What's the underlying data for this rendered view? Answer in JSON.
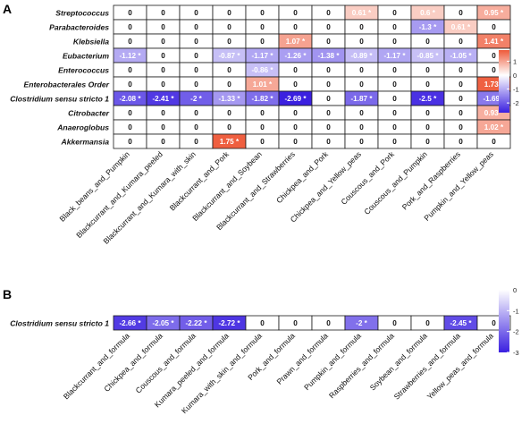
{
  "colors": {
    "negative": "#3a1fe0",
    "neutral": "#ffffff",
    "positive": "#ee5a3a",
    "border": "#1a1a1a",
    "text_on_light": "#111111",
    "text_on_dark": "#ffffff"
  },
  "chart_data": [
    {
      "type": "heatmap",
      "panel_label": "A",
      "title": "",
      "xlabel": "",
      "ylabel": "",
      "rows": [
        "Streptococcus",
        "Parabacteroides",
        "Klebsiella",
        "Eubacterium",
        "Enterococcus",
        "Enterobacterales Order",
        "Clostridium sensu stricto 1",
        "Citrobacter",
        "Anaeroglobus",
        "Akkermansia"
      ],
      "columns": [
        "Black_beans_and_Pumpkin",
        "Blackcurrant_and_Kumara_peeled",
        "Blackcurrant_and_Kumara_with_skin",
        "Blackcurrant_and_Pork",
        "Blackcurrant_and_Soybean",
        "Blackcurrant_and_Strawberries",
        "Chickpea_and_Pork",
        "Chickpea_and_Yellow_peas",
        "Couscous_and_Pork",
        "Couscous_and_Pumpkin",
        "Pork_and_Raspberries",
        "Pumpkin_and_Yellow_peas"
      ],
      "values": [
        [
          0,
          0,
          0,
          0,
          0,
          0,
          0,
          0.61,
          0,
          0.6,
          0,
          0.95
        ],
        [
          0,
          0,
          0,
          0,
          0,
          0,
          0,
          0,
          0,
          -1.3,
          0.61,
          0
        ],
        [
          0,
          0,
          0,
          0,
          0,
          1.07,
          0,
          0,
          0,
          0,
          0,
          1.41
        ],
        [
          -1.12,
          0,
          0,
          -0.87,
          -1.17,
          -1.26,
          -1.38,
          -0.89,
          -1.17,
          -0.85,
          -1.05,
          0
        ],
        [
          0,
          0,
          0,
          0,
          -0.86,
          0,
          0,
          0,
          0,
          0,
          0,
          0
        ],
        [
          0,
          0,
          0,
          0,
          1.01,
          0,
          0,
          0,
          0,
          0,
          0,
          1.73
        ],
        [
          -2.08,
          -2.41,
          -2,
          -1.33,
          -1.82,
          -2.69,
          0,
          -1.87,
          0,
          -2.5,
          0,
          -1.69
        ],
        [
          0,
          0,
          0,
          0,
          0,
          0,
          0,
          0,
          0,
          0,
          0,
          0.93
        ],
        [
          0,
          0,
          0,
          0,
          0,
          0,
          0,
          0,
          0,
          0,
          0,
          1.02
        ],
        [
          0,
          0,
          0,
          1.75,
          0,
          0,
          0,
          0,
          0,
          0,
          0,
          0
        ]
      ],
      "labels": [
        [
          "0",
          "0",
          "0",
          "0",
          "0",
          "0",
          "0",
          "0.61 *",
          "0",
          "0.6 *",
          "0",
          "0.95 *"
        ],
        [
          "0",
          "0",
          "0",
          "0",
          "0",
          "0",
          "0",
          "0",
          "0",
          "-1.3 *",
          "0.61 *",
          "0"
        ],
        [
          "0",
          "0",
          "0",
          "0",
          "0",
          "1.07 *",
          "0",
          "0",
          "0",
          "0",
          "0",
          "1.41 *"
        ],
        [
          "-1.12 *",
          "0",
          "0",
          "-0.87 *",
          "-1.17 *",
          "-1.26 *",
          "-1.38 *",
          "-0.89 *",
          "-1.17 *",
          "-0.85 *",
          "-1.05 *",
          "0"
        ],
        [
          "0",
          "0",
          "0",
          "0",
          "-0.86 *",
          "0",
          "0",
          "0",
          "0",
          "0",
          "0",
          "0"
        ],
        [
          "0",
          "0",
          "0",
          "0",
          "1.01 *",
          "0",
          "0",
          "0",
          "0",
          "0",
          "0",
          "1.73 *"
        ],
        [
          "-2.08 *",
          "-2.41 *",
          "-2 *",
          "-1.33 *",
          "-1.82 *",
          "-2.69 *",
          "0",
          "-1.87 *",
          "0",
          "-2.5 *",
          "0",
          "-1.69 *"
        ],
        [
          "0",
          "0",
          "0",
          "0",
          "0",
          "0",
          "0",
          "0",
          "0",
          "0",
          "0",
          "0.93 *"
        ],
        [
          "0",
          "0",
          "0",
          "0",
          "0",
          "0",
          "0",
          "0",
          "0",
          "0",
          "0",
          "1.02 *"
        ],
        [
          "0",
          "0",
          "0",
          "1.75 *",
          "0",
          "0",
          "0",
          "0",
          "0",
          "0",
          "0",
          "0"
        ]
      ],
      "scale": {
        "min": -2.7,
        "max": 1.8
      },
      "legend": {
        "position": "right",
        "ticks": [
          "1",
          "0",
          "-1",
          "-2"
        ]
      }
    },
    {
      "type": "heatmap",
      "panel_label": "B",
      "title": "",
      "xlabel": "",
      "ylabel": "",
      "rows": [
        "Clostridium sensu stricto 1"
      ],
      "columns": [
        "Blackcurrant_and_formula",
        "Chickpea_and_formula",
        "Couscous_and_formula",
        "Kumara_peeled_and_formula",
        "Kumara_with_skin_and_formula",
        "Pork_and_formula",
        "Prawn_and_formula",
        "Pumpkin_and_formula",
        "Raspberries_and_formula",
        "Soybean_and_formula",
        "Strawberries_and_formula",
        "Yellow_peas_and_formula"
      ],
      "values": [
        [
          -2.66,
          -2.05,
          -2.22,
          -2.72,
          0,
          0,
          0,
          -2,
          0,
          0,
          -2.45,
          0
        ]
      ],
      "labels": [
        [
          "-2.66 *",
          "-2.05 *",
          "-2.22 *",
          "-2.72 *",
          "0",
          "0",
          "0",
          "-2 *",
          "0",
          "0",
          "-2.45 *",
          "0"
        ]
      ],
      "scale": {
        "min": -3,
        "max": 0
      },
      "legend": {
        "position": "right",
        "ticks": [
          "0",
          "-1",
          "-2",
          "-3"
        ]
      }
    }
  ]
}
